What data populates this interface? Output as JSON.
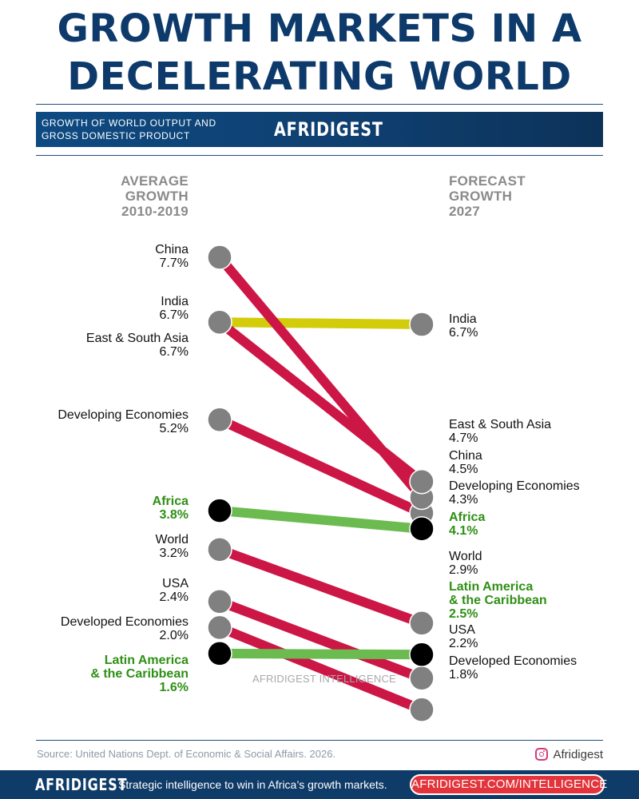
{
  "header": {
    "title_line1": "GROWTH MARKETS IN A",
    "title_line2": "DECELERATING WORLD",
    "subtitle_line1": "GROWTH OF WORLD OUTPUT AND",
    "subtitle_line2": "GROSS DOMESTIC PRODUCT",
    "brand": "AFRIDIGEST"
  },
  "columns": {
    "left": [
      "AVERAGE",
      "GROWTH",
      "2010-2019"
    ],
    "right": [
      "FORECAST",
      "GROWTH",
      "2027"
    ]
  },
  "colors": {
    "decline": "#cc1645",
    "flat": "#d2cc0a",
    "rise": "#6bbb50",
    "dot": "#808080",
    "africa_dot": "#000000",
    "label": "#111111",
    "highlight_label": "#2f8f16",
    "title": "#0d3a6a"
  },
  "chart_data": {
    "type": "slope",
    "title": "GROWTH MARKETS IN A DECELERATING WORLD",
    "units": "%",
    "x": [
      "AVERAGE GROWTH 2010-2019",
      "FORECAST GROWTH 2027"
    ],
    "series": [
      {
        "name": "China",
        "values": [
          7.7,
          4.5
        ],
        "trend": "decline",
        "highlight": false
      },
      {
        "name": "India",
        "values": [
          6.7,
          6.7
        ],
        "trend": "flat",
        "highlight": false
      },
      {
        "name": "East & South Asia",
        "values": [
          6.7,
          4.7
        ],
        "trend": "decline",
        "highlight": false
      },
      {
        "name": "Developing Economies",
        "values": [
          5.2,
          4.3
        ],
        "trend": "decline",
        "highlight": false
      },
      {
        "name": "Africa",
        "values": [
          3.8,
          4.1
        ],
        "trend": "rise",
        "highlight": true
      },
      {
        "name": "World",
        "values": [
          3.2,
          2.9
        ],
        "trend": "decline",
        "highlight": false
      },
      {
        "name": "USA",
        "values": [
          2.4,
          2.2
        ],
        "trend": "decline",
        "highlight": false
      },
      {
        "name": "Developed Economies",
        "values": [
          2.0,
          1.8
        ],
        "trend": "decline",
        "highlight": false
      },
      {
        "name": "Latin America & the Caribbean",
        "values": [
          1.6,
          2.5
        ],
        "trend": "rise",
        "highlight": true
      }
    ],
    "left_labels": [
      {
        "lines": [
          "China",
          "7.7%"
        ],
        "highlight": false
      },
      {
        "lines": [
          "India",
          "6.7%"
        ],
        "highlight": false
      },
      {
        "lines": [
          "East & South Asia",
          "6.7%"
        ],
        "highlight": false
      },
      {
        "lines": [
          "Developing Economies",
          "5.2%"
        ],
        "highlight": false
      },
      {
        "lines": [
          "Africa",
          "3.8%"
        ],
        "highlight": true
      },
      {
        "lines": [
          "World",
          "3.2%"
        ],
        "highlight": false
      },
      {
        "lines": [
          "USA",
          "2.4%"
        ],
        "highlight": false
      },
      {
        "lines": [
          "Developed Economies",
          "2.0%"
        ],
        "highlight": false
      },
      {
        "lines": [
          "Latin America",
          "& the Caribbean",
          "1.6%"
        ],
        "highlight": true
      }
    ],
    "right_labels": [
      {
        "lines": [
          "India",
          "6.7%"
        ],
        "highlight": false
      },
      {
        "lines": [
          "East & South Asia",
          "4.7%"
        ],
        "highlight": false
      },
      {
        "lines": [
          "China",
          "4.5%"
        ],
        "highlight": false
      },
      {
        "lines": [
          "Developing Economies",
          "4.3%"
        ],
        "highlight": false
      },
      {
        "lines": [
          "Africa",
          "4.1%"
        ],
        "highlight": true
      },
      {
        "lines": [
          "World",
          "2.9%"
        ],
        "highlight": false
      },
      {
        "lines": [
          "Latin America",
          "& the Caribbean",
          "2.5%"
        ],
        "highlight": true
      },
      {
        "lines": [
          "USA",
          "2.2%"
        ],
        "highlight": false
      },
      {
        "lines": [
          "Developed Economies",
          "1.8%"
        ],
        "highlight": false
      }
    ]
  },
  "watermark": "AFRIDIGEST INTELLIGENCE",
  "source": "Source: United Nations Dept. of Economic & Social Affairs. 2026.",
  "social": {
    "icon": "instagram-icon",
    "handle": "Afridigest"
  },
  "footer": {
    "brand": "AFRIDIGEST",
    "tagline": "Strategic intelligence to win in Africa’s growth markets.",
    "cta": "AFRIDIGEST.COM/INTELLIGENCE"
  }
}
